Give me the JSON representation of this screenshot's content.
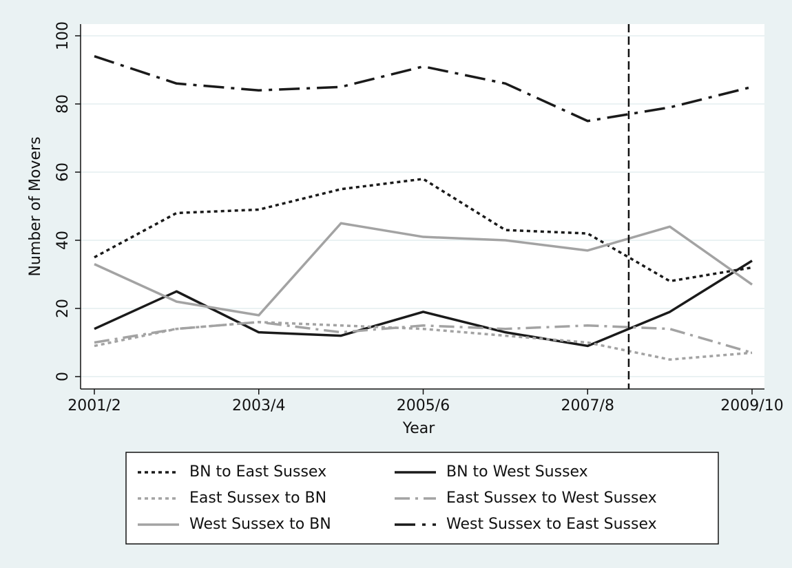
{
  "chart_data": {
    "type": "line",
    "x_label": "Year",
    "y_label": "Number of Movers",
    "categories": [
      "2001/2",
      null,
      "2003/4",
      null,
      "2005/6",
      null,
      "2007/8",
      null,
      "2009/10"
    ],
    "ylim": [
      0,
      100
    ],
    "yticks": [
      0,
      20,
      40,
      60,
      80,
      100
    ],
    "grid": true,
    "vline_x": 6.5,
    "legend": "bottom",
    "series": [
      {
        "name": "BN to East Sussex",
        "color": "#1a1a1a",
        "dash": "dot",
        "values": [
          35,
          48,
          49,
          55,
          58,
          43,
          42,
          28,
          32
        ]
      },
      {
        "name": "BN to West Sussex",
        "color": "#1a1a1a",
        "dash": "solid",
        "values": [
          14,
          25,
          13,
          12,
          19,
          13,
          9,
          19,
          34
        ]
      },
      {
        "name": "East Sussex to BN",
        "color": "#a3a3a3",
        "dash": "dot",
        "values": [
          9,
          14,
          16,
          15,
          14,
          12,
          10,
          5,
          7
        ]
      },
      {
        "name": "East Sussex to West Sussex",
        "color": "#a3a3a3",
        "dash": "dashdot",
        "values": [
          10,
          14,
          16,
          13,
          15,
          14,
          15,
          14,
          7
        ]
      },
      {
        "name": "West Sussex to BN",
        "color": "#a3a3a3",
        "dash": "solid",
        "values": [
          33,
          22,
          18,
          45,
          41,
          40,
          37,
          44,
          27
        ]
      },
      {
        "name": "West Sussex to East Sussex",
        "color": "#1a1a1a",
        "dash": "longdashdot",
        "values": [
          94,
          86,
          84,
          85,
          91,
          86,
          75,
          79,
          85
        ]
      }
    ]
  }
}
